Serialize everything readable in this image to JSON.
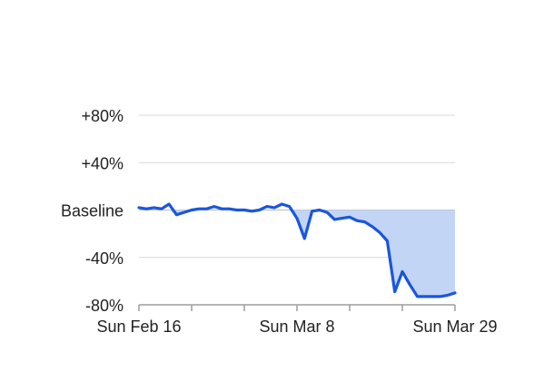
{
  "chart_data": {
    "type": "area",
    "title": "",
    "xlabel": "",
    "ylabel": "",
    "y_ticks": [
      {
        "value": 80,
        "label": "+80%"
      },
      {
        "value": 40,
        "label": "+40%"
      },
      {
        "value": 0,
        "label": "Baseline"
      },
      {
        "value": -40,
        "label": "-40%"
      },
      {
        "value": -80,
        "label": "-80%"
      }
    ],
    "x_ticks": [
      {
        "date": "2020-02-16",
        "label": "Sun Feb 16"
      },
      {
        "date": "2020-03-08",
        "label": "Sun Mar 8"
      },
      {
        "date": "2020-03-29",
        "label": "Sun Mar 29"
      }
    ],
    "x_minor_tick_dates": [
      "2020-02-23",
      "2020-03-01",
      "2020-03-15",
      "2020-03-22"
    ],
    "xlim": [
      "2020-02-16",
      "2020-03-29"
    ],
    "ylim": [
      -80,
      80
    ],
    "grid": true,
    "fill_below_baseline": true,
    "colors": {
      "line": "#1a56db",
      "fill": "#c3d5f5",
      "grid": "#d9d9d9",
      "baseline": "#bdbdbd"
    },
    "series": [
      {
        "x": [
          "2020-02-16",
          "2020-02-17",
          "2020-02-18",
          "2020-02-19",
          "2020-02-20",
          "2020-02-21",
          "2020-02-22",
          "2020-02-23",
          "2020-02-24",
          "2020-02-25",
          "2020-02-26",
          "2020-02-27",
          "2020-02-28",
          "2020-02-29",
          "2020-03-01",
          "2020-03-02",
          "2020-03-03",
          "2020-03-04",
          "2020-03-05",
          "2020-03-06",
          "2020-03-07",
          "2020-03-08",
          "2020-03-09",
          "2020-03-10",
          "2020-03-11",
          "2020-03-12",
          "2020-03-13",
          "2020-03-14",
          "2020-03-15",
          "2020-03-16",
          "2020-03-17",
          "2020-03-18",
          "2020-03-19",
          "2020-03-20",
          "2020-03-21",
          "2020-03-22",
          "2020-03-23",
          "2020-03-24",
          "2020-03-25",
          "2020-03-26",
          "2020-03-27",
          "2020-03-28",
          "2020-03-29"
        ],
        "values": [
          2,
          1,
          2,
          1,
          5,
          -4,
          -2,
          0,
          1,
          1,
          3,
          1,
          1,
          0,
          0,
          -1,
          0,
          3,
          2,
          5,
          3,
          -7,
          -24,
          -1,
          0,
          -2,
          -8,
          -7,
          -6,
          -9,
          -10,
          -14,
          -19,
          -26,
          -69,
          -52,
          -63,
          -73,
          -73,
          -73,
          -73,
          -72,
          -70
        ]
      }
    ]
  }
}
